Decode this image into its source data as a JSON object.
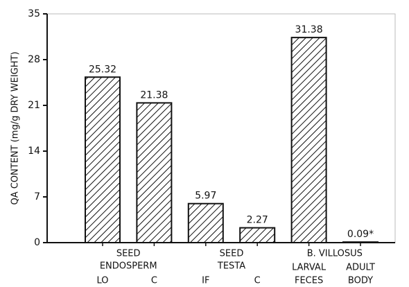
{
  "chart_data": {
    "type": "bar",
    "y_label": "QA CONTENT (mg/g DRY WEIGHT)",
    "groups": [
      [
        "SEED",
        "ENDOSPERM"
      ],
      [
        "SEED",
        "TESTA"
      ],
      [
        "B. VILLOSUS"
      ]
    ],
    "categories": [
      [
        "LO"
      ],
      [
        "C"
      ],
      [
        "IF"
      ],
      [
        "C"
      ],
      [
        "LARVAL",
        "FECES"
      ],
      [
        "ADULT",
        "BODY"
      ]
    ],
    "values": [
      25.32,
      21.38,
      5.97,
      2.27,
      31.38,
      0.09
    ],
    "value_labels": [
      "25.32",
      "21.38",
      "5.97",
      "2.27",
      "31.38",
      "0.09*"
    ],
    "color": "#111111",
    "ylim": [
      0,
      35
    ],
    "yticks": [
      0,
      7,
      14,
      21,
      28,
      35
    ]
  }
}
